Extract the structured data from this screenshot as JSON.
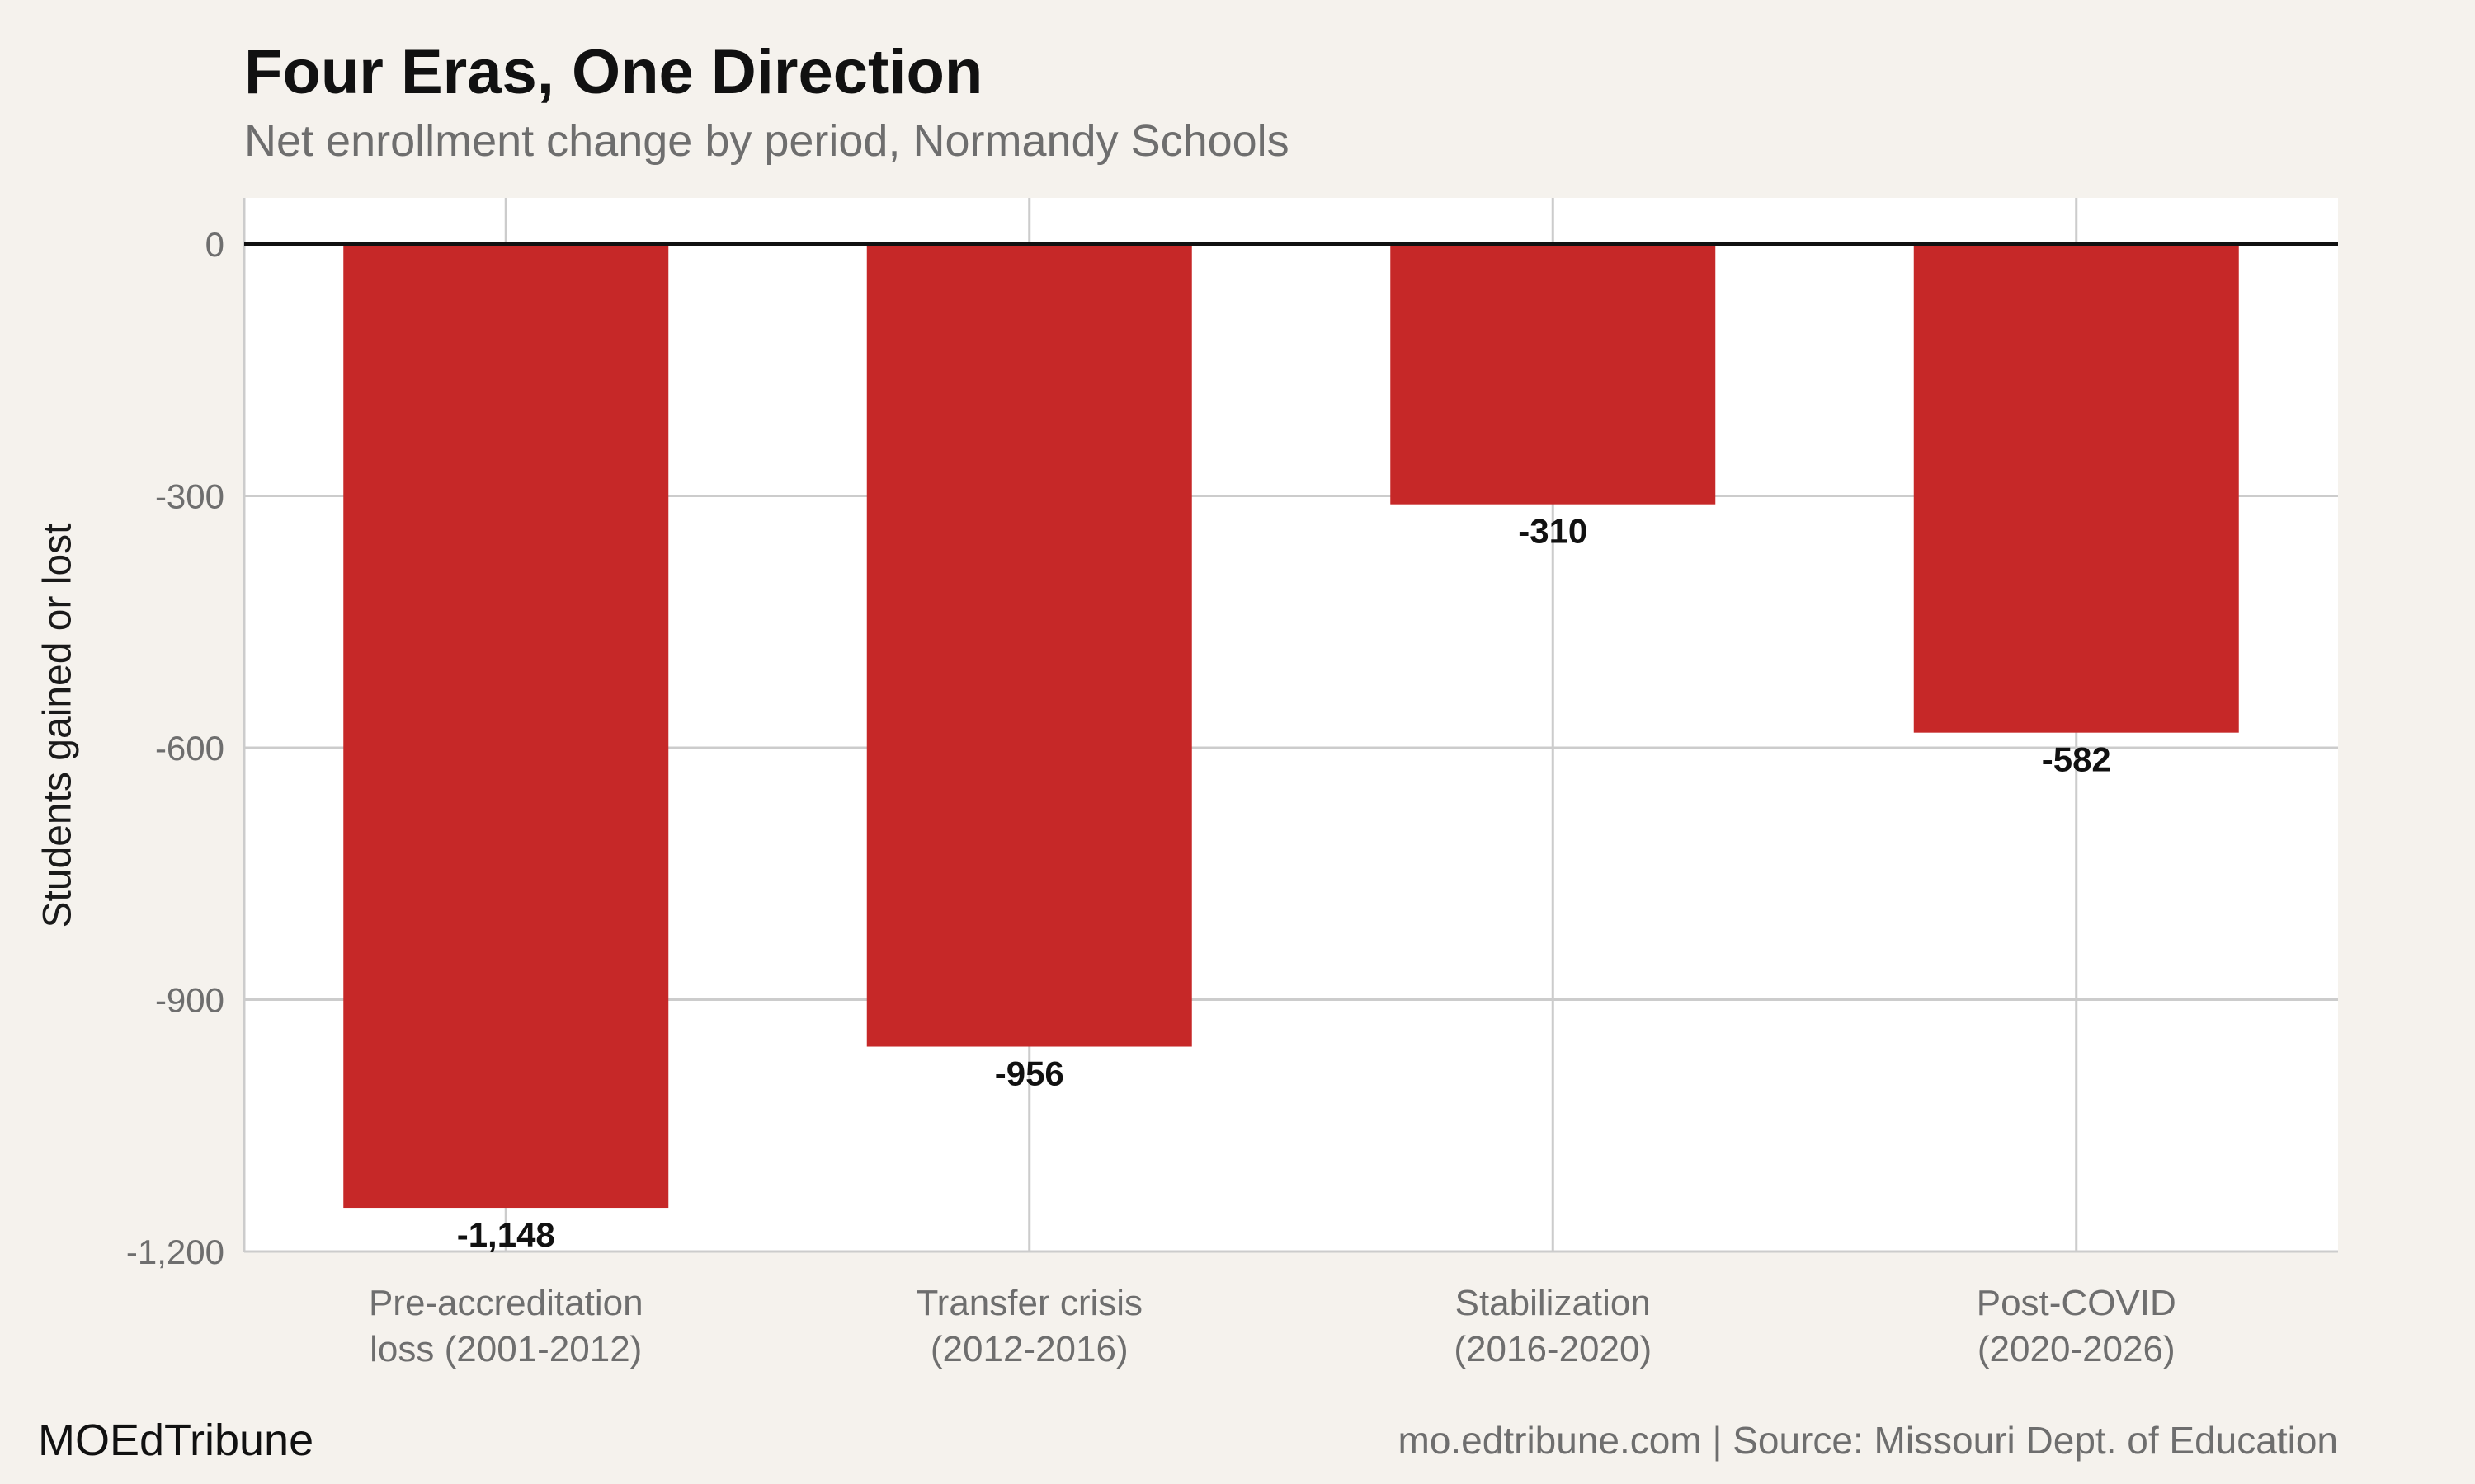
{
  "header": {
    "title": "Four Eras, One Direction",
    "subtitle": "Net enrollment change by period, Normandy Schools"
  },
  "footer": {
    "brand": "MOEdTribune",
    "source": "mo.edtribune.com | Source: Missouri Dept. of Education"
  },
  "colors": {
    "bar": "#c62828",
    "background": "#f5f2ed",
    "panel": "#ffffff",
    "grid": "#cccccc",
    "zero_line": "#111111"
  },
  "chart_data": {
    "type": "bar",
    "title": "Four Eras, One Direction",
    "subtitle": "Net enrollment change by period, Normandy Schools",
    "xlabel": "",
    "ylabel": "Students gained or lost",
    "categories": [
      [
        "Pre-accreditation",
        "loss (2001-2012)"
      ],
      [
        "Transfer crisis",
        "(2012-2016)"
      ],
      [
        "Stabilization",
        "(2016-2020)"
      ],
      [
        "Post-COVID",
        "(2020-2026)"
      ]
    ],
    "values": [
      -1148,
      -956,
      -310,
      -582
    ],
    "value_labels": [
      "-1,148",
      "-956",
      "-310",
      "-582"
    ],
    "yticks": [
      0,
      -300,
      -600,
      -900,
      -1200
    ],
    "ytick_labels": [
      "0",
      "-300",
      "-600",
      "-900",
      "-1,200"
    ],
    "ylim": [
      -1200,
      55
    ],
    "grid": true,
    "legend": "none"
  }
}
